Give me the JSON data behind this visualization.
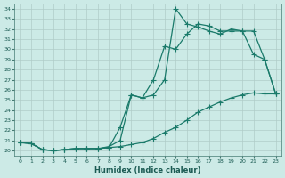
{
  "xlabel": "Humidex (Indice chaleur)",
  "bg_color": "#cceae6",
  "grid_color": "#b0ccc8",
  "line_color": "#1a7a6a",
  "xlim": [
    -0.5,
    23.5
  ],
  "ylim": [
    19.5,
    34.5
  ],
  "xticks": [
    0,
    1,
    2,
    3,
    4,
    5,
    6,
    7,
    8,
    9,
    10,
    11,
    12,
    13,
    14,
    15,
    16,
    17,
    18,
    19,
    20,
    21,
    22,
    23
  ],
  "yticks": [
    20,
    21,
    22,
    23,
    24,
    25,
    26,
    27,
    28,
    29,
    30,
    31,
    32,
    33,
    34
  ],
  "line1_x": [
    0,
    1,
    2,
    3,
    4,
    5,
    6,
    7,
    8,
    9,
    10,
    11,
    12,
    13,
    14,
    15,
    16,
    17,
    18,
    19,
    20,
    21,
    22,
    23
  ],
  "line1_y": [
    20.8,
    20.7,
    20.1,
    20.0,
    20.1,
    20.2,
    20.2,
    20.2,
    20.3,
    20.4,
    20.6,
    20.8,
    21.2,
    21.8,
    22.3,
    23.0,
    23.8,
    24.3,
    24.8,
    25.2,
    25.5,
    25.7,
    25.6,
    25.6
  ],
  "line2_x": [
    0,
    1,
    2,
    3,
    4,
    5,
    6,
    7,
    8,
    9,
    10,
    11,
    12,
    13,
    14,
    15,
    16,
    17,
    18,
    19,
    20,
    21,
    22,
    23
  ],
  "line2_y": [
    20.8,
    20.7,
    20.1,
    20.0,
    20.1,
    20.2,
    20.2,
    20.2,
    20.4,
    21.0,
    25.5,
    25.2,
    27.0,
    30.3,
    30.0,
    31.5,
    32.5,
    32.3,
    31.8,
    31.8,
    31.8,
    29.5,
    29.0,
    25.6
  ],
  "line3_x": [
    0,
    1,
    2,
    3,
    4,
    5,
    6,
    7,
    8,
    9,
    10,
    11,
    12,
    13,
    14,
    15,
    16,
    17,
    18,
    19,
    20,
    21,
    22,
    23
  ],
  "line3_y": [
    20.8,
    20.7,
    20.1,
    20.0,
    20.1,
    20.2,
    20.2,
    20.2,
    20.3,
    22.3,
    25.5,
    25.2,
    25.5,
    27.0,
    34.0,
    32.5,
    32.2,
    31.8,
    31.5,
    32.0,
    31.8,
    31.8,
    29.0,
    25.6
  ]
}
